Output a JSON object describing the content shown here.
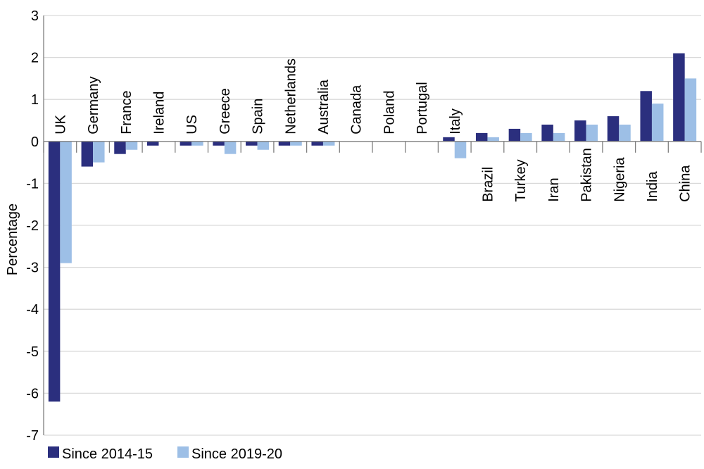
{
  "chart_data": {
    "type": "bar",
    "title": "",
    "xlabel": "",
    "ylabel": "Percentage",
    "ylim": [
      -7,
      3
    ],
    "yticks": [
      3,
      2,
      1,
      0,
      -1,
      -2,
      -3,
      -4,
      -5,
      -6,
      -7
    ],
    "ytick_labels": [
      "3",
      "2",
      "1",
      "0",
      "-1",
      "-2",
      "-3",
      "-4",
      "-5",
      "-6",
      "-7"
    ],
    "grid": true,
    "legend_position": "bottom-left",
    "categories": [
      "UK",
      "Germany",
      "France",
      "Ireland",
      "US",
      "Greece",
      "Spain",
      "Netherlands",
      "Australia",
      "Canada",
      "Poland",
      "Portugal",
      "Italy",
      "Brazil",
      "Turkey",
      "Iran",
      "Pakistan",
      "Nigeria",
      "India",
      "China"
    ],
    "series": [
      {
        "name": "Since 2014-15",
        "color": "#2b2f7e",
        "values": [
          -6.2,
          -0.6,
          -0.3,
          -0.1,
          -0.1,
          -0.1,
          -0.1,
          -0.1,
          -0.1,
          0,
          0,
          0,
          0.1,
          0.2,
          0.3,
          0.4,
          0.5,
          0.6,
          1.2,
          2.1
        ]
      },
      {
        "name": "Since 2019-20",
        "color": "#9dbfe6",
        "values": [
          -2.9,
          -0.5,
          -0.2,
          0,
          -0.1,
          -0.3,
          -0.2,
          -0.1,
          -0.1,
          0,
          0,
          0,
          -0.4,
          0.1,
          0.2,
          0.2,
          0.4,
          0.4,
          0.9,
          1.5
        ]
      }
    ]
  },
  "colors": {
    "gridline": "#d9d9d9",
    "axis": "#7f7f7f"
  }
}
